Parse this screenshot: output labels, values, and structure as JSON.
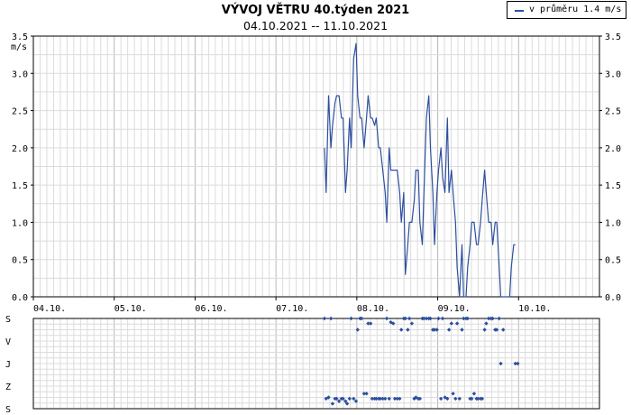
{
  "chart_data": [
    {
      "type": "line",
      "title": "VÝVOJ VĚTRU 40.týden 2021",
      "subtitle": "04.10.2021 -- 11.10.2021",
      "ylabel": "m/s",
      "ylim": [
        0,
        3.5
      ],
      "yticks": [
        "0.0",
        "0.5",
        "1.0",
        "1.5",
        "2.0",
        "2.5",
        "3.0",
        "3.5"
      ],
      "xlim_days": [
        0,
        7
      ],
      "xticks": [
        "04.10.",
        "05.10.",
        "06.10.",
        "07.10.",
        "08.10.",
        "09.10.",
        "10.10."
      ],
      "grid": true,
      "legend_position": "top-right",
      "series": [
        {
          "name": "v průměru 1.4 m/s",
          "color": "#2c4f9e",
          "points": [
            [
              3.6,
              2.0
            ],
            [
              3.62,
              1.4
            ],
            [
              3.65,
              2.7
            ],
            [
              3.68,
              2.0
            ],
            [
              3.7,
              2.3
            ],
            [
              3.73,
              2.6
            ],
            [
              3.75,
              2.7
            ],
            [
              3.78,
              2.7
            ],
            [
              3.81,
              2.4
            ],
            [
              3.83,
              2.4
            ],
            [
              3.86,
              1.4
            ],
            [
              3.88,
              1.7
            ],
            [
              3.91,
              2.4
            ],
            [
              3.93,
              2.0
            ],
            [
              3.96,
              3.2
            ],
            [
              3.99,
              3.4
            ],
            [
              4.01,
              2.7
            ],
            [
              4.04,
              2.4
            ],
            [
              4.06,
              2.4
            ],
            [
              4.09,
              2.0
            ],
            [
              4.12,
              2.4
            ],
            [
              4.14,
              2.7
            ],
            [
              4.17,
              2.4
            ],
            [
              4.19,
              2.4
            ],
            [
              4.22,
              2.3
            ],
            [
              4.24,
              2.4
            ],
            [
              4.27,
              2.0
            ],
            [
              4.29,
              2.0
            ],
            [
              4.32,
              1.7
            ],
            [
              4.35,
              1.4
            ],
            [
              4.37,
              1.0
            ],
            [
              4.4,
              2.0
            ],
            [
              4.42,
              1.7
            ],
            [
              4.45,
              1.7
            ],
            [
              4.47,
              1.7
            ],
            [
              4.5,
              1.7
            ],
            [
              4.53,
              1.4
            ],
            [
              4.55,
              1.0
            ],
            [
              4.58,
              1.4
            ],
            [
              4.6,
              0.3
            ],
            [
              4.63,
              0.7
            ],
            [
              4.65,
              1.0
            ],
            [
              4.68,
              1.0
            ],
            [
              4.71,
              1.3
            ],
            [
              4.73,
              1.7
            ],
            [
              4.76,
              1.7
            ],
            [
              4.78,
              1.0
            ],
            [
              4.81,
              0.7
            ],
            [
              4.83,
              1.4
            ],
            [
              4.86,
              2.4
            ],
            [
              4.89,
              2.7
            ],
            [
              4.91,
              2.0
            ],
            [
              4.94,
              1.4
            ],
            [
              4.96,
              0.7
            ],
            [
              4.99,
              1.4
            ],
            [
              5.01,
              1.7
            ],
            [
              5.04,
              2.0
            ],
            [
              5.06,
              1.6
            ],
            [
              5.09,
              1.4
            ],
            [
              5.12,
              2.4
            ],
            [
              5.14,
              1.4
            ],
            [
              5.17,
              1.7
            ],
            [
              5.19,
              1.4
            ],
            [
              5.22,
              1.0
            ],
            [
              5.24,
              0.4
            ],
            [
              5.27,
              0.0
            ],
            [
              5.3,
              0.7
            ],
            [
              5.32,
              0.0
            ],
            [
              5.35,
              0.0
            ],
            [
              5.37,
              0.4
            ],
            [
              5.4,
              0.7
            ],
            [
              5.42,
              1.0
            ],
            [
              5.45,
              1.0
            ],
            [
              5.48,
              0.7
            ],
            [
              5.5,
              0.7
            ],
            [
              5.53,
              1.0
            ],
            [
              5.55,
              1.3
            ],
            [
              5.58,
              1.7
            ],
            [
              5.6,
              1.4
            ],
            [
              5.63,
              1.0
            ],
            [
              5.66,
              1.0
            ],
            [
              5.68,
              0.7
            ],
            [
              5.71,
              1.0
            ],
            [
              5.73,
              1.0
            ],
            [
              5.76,
              0.4
            ],
            [
              5.78,
              0.0
            ],
            [
              5.81,
              0.0
            ],
            [
              5.84,
              0.0
            ],
            [
              5.86,
              0.0
            ],
            [
              5.89,
              0.0
            ],
            [
              5.91,
              0.4
            ],
            [
              5.94,
              0.7
            ],
            [
              5.96,
              0.7
            ]
          ]
        }
      ]
    },
    {
      "type": "scatter",
      "ylabel_ticks": [
        "S",
        "V",
        "J",
        "Z",
        "S"
      ],
      "xlim_days": [
        0,
        7
      ],
      "grid": true,
      "direction_note": "wind direction in degrees, 0 = S (north), 90 = V, 180 = J, 270 = Z, 360 = S",
      "points": [
        [
          3.6,
          0
        ],
        [
          3.62,
          320
        ],
        [
          3.65,
          315
        ],
        [
          3.68,
          0
        ],
        [
          3.7,
          340
        ],
        [
          3.73,
          320
        ],
        [
          3.75,
          320
        ],
        [
          3.78,
          330
        ],
        [
          3.81,
          320
        ],
        [
          3.83,
          320
        ],
        [
          3.86,
          330
        ],
        [
          3.88,
          340
        ],
        [
          3.91,
          320
        ],
        [
          3.93,
          0
        ],
        [
          3.96,
          320
        ],
        [
          3.99,
          330
        ],
        [
          4.01,
          45
        ],
        [
          4.04,
          0
        ],
        [
          4.06,
          0
        ],
        [
          4.09,
          300
        ],
        [
          4.12,
          300
        ],
        [
          4.14,
          20
        ],
        [
          4.17,
          20
        ],
        [
          4.19,
          320
        ],
        [
          4.22,
          320
        ],
        [
          4.24,
          320
        ],
        [
          4.27,
          320
        ],
        [
          4.29,
          320
        ],
        [
          4.32,
          320
        ],
        [
          4.35,
          320
        ],
        [
          4.37,
          0
        ],
        [
          4.4,
          320
        ],
        [
          4.42,
          15
        ],
        [
          4.45,
          20
        ],
        [
          4.47,
          320
        ],
        [
          4.5,
          320
        ],
        [
          4.53,
          320
        ],
        [
          4.55,
          45
        ],
        [
          4.58,
          0
        ],
        [
          4.6,
          0
        ],
        [
          4.63,
          45
        ],
        [
          4.65,
          0
        ],
        [
          4.68,
          20
        ],
        [
          4.71,
          320
        ],
        [
          4.73,
          315
        ],
        [
          4.76,
          320
        ],
        [
          4.78,
          320
        ],
        [
          4.81,
          0
        ],
        [
          4.83,
          0
        ],
        [
          4.86,
          0
        ],
        [
          4.89,
          0
        ],
        [
          4.91,
          0
        ],
        [
          4.94,
          45
        ],
        [
          4.96,
          45
        ],
        [
          4.99,
          45
        ],
        [
          5.01,
          0
        ],
        [
          5.04,
          320
        ],
        [
          5.06,
          0
        ],
        [
          5.09,
          315
        ],
        [
          5.12,
          320
        ],
        [
          5.14,
          45
        ],
        [
          5.17,
          20
        ],
        [
          5.19,
          300
        ],
        [
          5.22,
          320
        ],
        [
          5.24,
          20
        ],
        [
          5.27,
          320
        ],
        [
          5.3,
          45
        ],
        [
          5.32,
          0
        ],
        [
          5.35,
          0
        ],
        [
          5.37,
          0
        ],
        [
          5.4,
          320
        ],
        [
          5.42,
          320
        ],
        [
          5.45,
          300
        ],
        [
          5.48,
          320
        ],
        [
          5.5,
          320
        ],
        [
          5.53,
          320
        ],
        [
          5.55,
          320
        ],
        [
          5.58,
          45
        ],
        [
          5.6,
          20
        ],
        [
          5.63,
          0
        ],
        [
          5.66,
          0
        ],
        [
          5.68,
          0
        ],
        [
          5.71,
          45
        ],
        [
          5.73,
          45
        ],
        [
          5.76,
          0
        ],
        [
          5.78,
          180
        ],
        [
          5.81,
          45
        ],
        [
          5.96,
          180
        ],
        [
          5.99,
          180
        ]
      ]
    }
  ],
  "legend": {
    "label": "v průměru 1.4 m/s",
    "color": "#2c4f9e"
  }
}
